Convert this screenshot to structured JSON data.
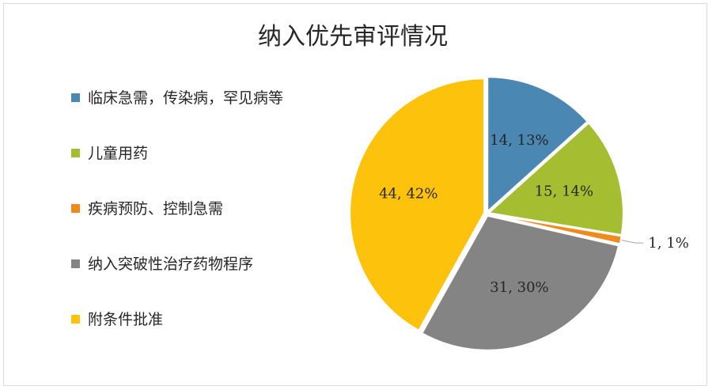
{
  "chart_data": {
    "type": "pie",
    "title": "纳入优先审评情况",
    "legend_position": "left",
    "series": [
      {
        "name": "临床急需，传染病，罕见病等",
        "value": 14,
        "percent": "13%",
        "label": "14, 13%",
        "color": "#4a87b2"
      },
      {
        "name": "儿童用药",
        "value": 15,
        "percent": "14%",
        "label": "15, 14%",
        "color": "#a5bd30"
      },
      {
        "name": "疾病预防、控制急需",
        "value": 1,
        "percent": "1%",
        "label": "1, 1%",
        "color": "#f08a1c"
      },
      {
        "name": "纳入突破性治疗药物程序",
        "value": 31,
        "percent": "30%",
        "label": "31, 30%",
        "color": "#848484"
      },
      {
        "name": "附条件批准",
        "value": 44,
        "percent": "42%",
        "label": "44, 42%",
        "color": "#fdc20b"
      }
    ]
  }
}
